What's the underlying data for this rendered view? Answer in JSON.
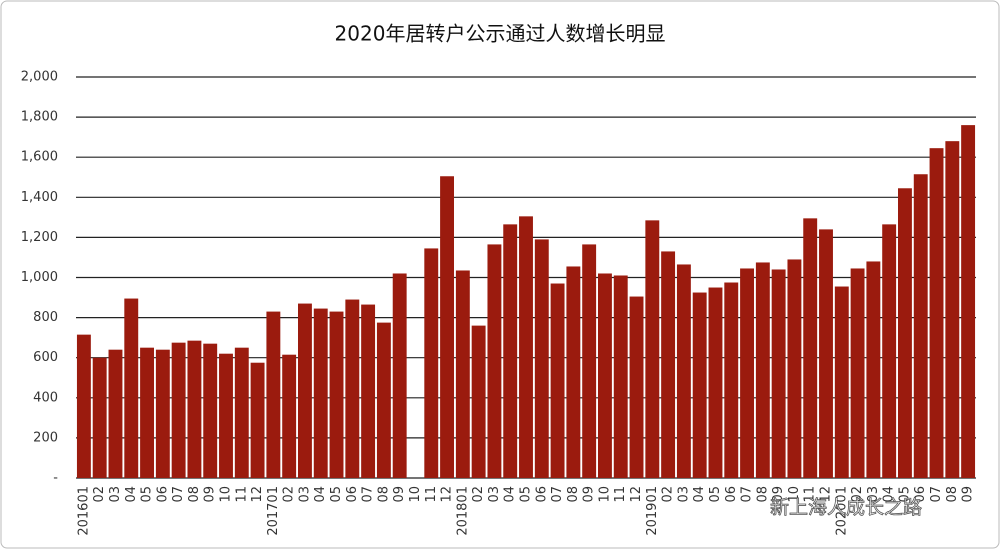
{
  "chart_data": {
    "type": "bar",
    "title": "2020年居转户公示通过人数增长明显",
    "categories": [
      "201601",
      "02",
      "03",
      "04",
      "05",
      "06",
      "07",
      "08",
      "09",
      "10",
      "11",
      "12",
      "201701",
      "02",
      "03",
      "04",
      "05",
      "06",
      "07",
      "08",
      "09",
      "10",
      "11",
      "12",
      "201801",
      "02",
      "03",
      "04",
      "05",
      "06",
      "07",
      "08",
      "09",
      "10",
      "11",
      "12",
      "201901",
      "02",
      "03",
      "04",
      "05",
      "06",
      "07",
      "08",
      "09",
      "10",
      "11",
      "12",
      "202001",
      "02",
      "03",
      "04",
      "05",
      "06",
      "07",
      "08",
      "09"
    ],
    "values": [
      715,
      600,
      640,
      895,
      650,
      640,
      675,
      685,
      670,
      620,
      650,
      575,
      830,
      615,
      870,
      845,
      830,
      890,
      865,
      775,
      1020,
      null,
      1145,
      1505,
      1035,
      760,
      1165,
      1265,
      1305,
      1190,
      970,
      1055,
      1165,
      1020,
      1010,
      905,
      1285,
      1130,
      1065,
      925,
      950,
      975,
      1045,
      1075,
      1040,
      1090,
      1295,
      1240,
      955,
      1045,
      1080,
      1265,
      1445,
      1515,
      1645,
      1680,
      1760
    ],
    "color": "#9b1b0e",
    "ylim": [
      0,
      2000
    ],
    "yticks": [
      {
        "value": 0,
        "label": "-"
      },
      200,
      400,
      600,
      800,
      {
        "value": 1000,
        "label": "1,000"
      },
      {
        "value": 1200,
        "label": "1,200"
      },
      {
        "value": 1400,
        "label": "1,400"
      },
      {
        "value": 1600,
        "label": "1,600"
      },
      {
        "value": 1800,
        "label": "1,800"
      },
      {
        "value": 2000,
        "label": "2,000"
      }
    ],
    "grid": true,
    "watermark": "新上海人成长之路"
  }
}
